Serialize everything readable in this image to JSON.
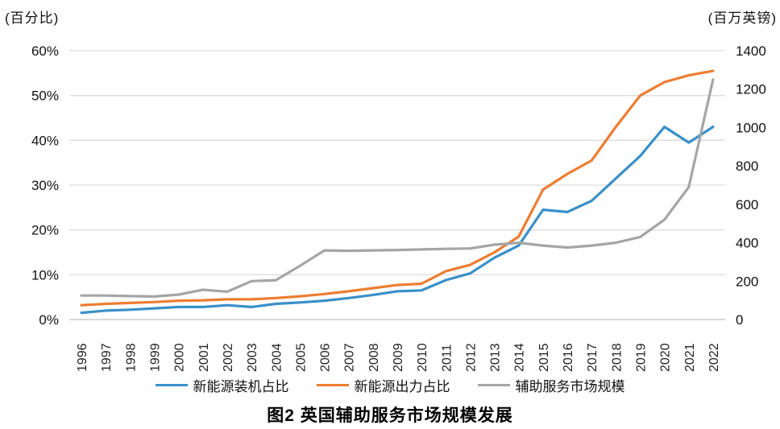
{
  "figure": {
    "caption": "图2  英国辅助服务市场规模发展",
    "left_axis_unit": "(百分比)",
    "right_axis_unit": "(百万英镑)"
  },
  "chart_data": {
    "type": "line",
    "title": "图2 英国辅助服务市场规模发展",
    "grid": "horizontal",
    "legend_position": "bottom",
    "categories": [
      "1996",
      "1997",
      "1998",
      "1999",
      "2000",
      "2001",
      "2002",
      "2003",
      "2004",
      "2005",
      "2006",
      "2007",
      "2008",
      "2009",
      "2010",
      "2011",
      "2012",
      "2013",
      "2014",
      "2015",
      "2016",
      "2017",
      "2018",
      "2019",
      "2020",
      "2021",
      "2022"
    ],
    "left_axis": {
      "unit": "百分比",
      "range": [
        0,
        60
      ],
      "ticks": [
        "60%",
        "50%",
        "40%",
        "30%",
        "20%",
        "10%",
        "0%"
      ]
    },
    "right_axis": {
      "unit": "百万英镑",
      "range": [
        0,
        1400
      ],
      "ticks": [
        "1400",
        "1200",
        "1000",
        "800",
        "600",
        "400",
        "200",
        "0"
      ]
    },
    "series": [
      {
        "name": "新能源装机占比",
        "axis": "left",
        "color": "#3990c9",
        "values": [
          1.5,
          2.0,
          2.2,
          2.5,
          2.8,
          2.8,
          3.2,
          2.8,
          3.5,
          3.8,
          4.2,
          4.8,
          5.5,
          6.3,
          6.5,
          8.8,
          10.3,
          13.8,
          16.5,
          24.5,
          24.0,
          26.5,
          31.5,
          36.5,
          43.0,
          39.5,
          43.0
        ]
      },
      {
        "name": "新能源出力占比",
        "axis": "left",
        "color": "#ed7d31",
        "values": [
          3.2,
          3.5,
          3.7,
          3.9,
          4.2,
          4.3,
          4.5,
          4.5,
          4.8,
          5.2,
          5.7,
          6.3,
          7.0,
          7.7,
          8.0,
          10.8,
          12.2,
          15.0,
          18.5,
          29.0,
          32.5,
          35.5,
          43.0,
          50.0,
          53.0,
          54.5,
          55.5
        ]
      },
      {
        "name": "辅助服务市场规模",
        "axis": "right",
        "color": "#a5a5a5",
        "values": [
          125,
          125,
          122,
          120,
          130,
          155,
          145,
          200,
          205,
          280,
          360,
          358,
          360,
          362,
          365,
          368,
          370,
          390,
          400,
          385,
          375,
          385,
          400,
          430,
          520,
          690,
          1250
        ]
      }
    ]
  }
}
